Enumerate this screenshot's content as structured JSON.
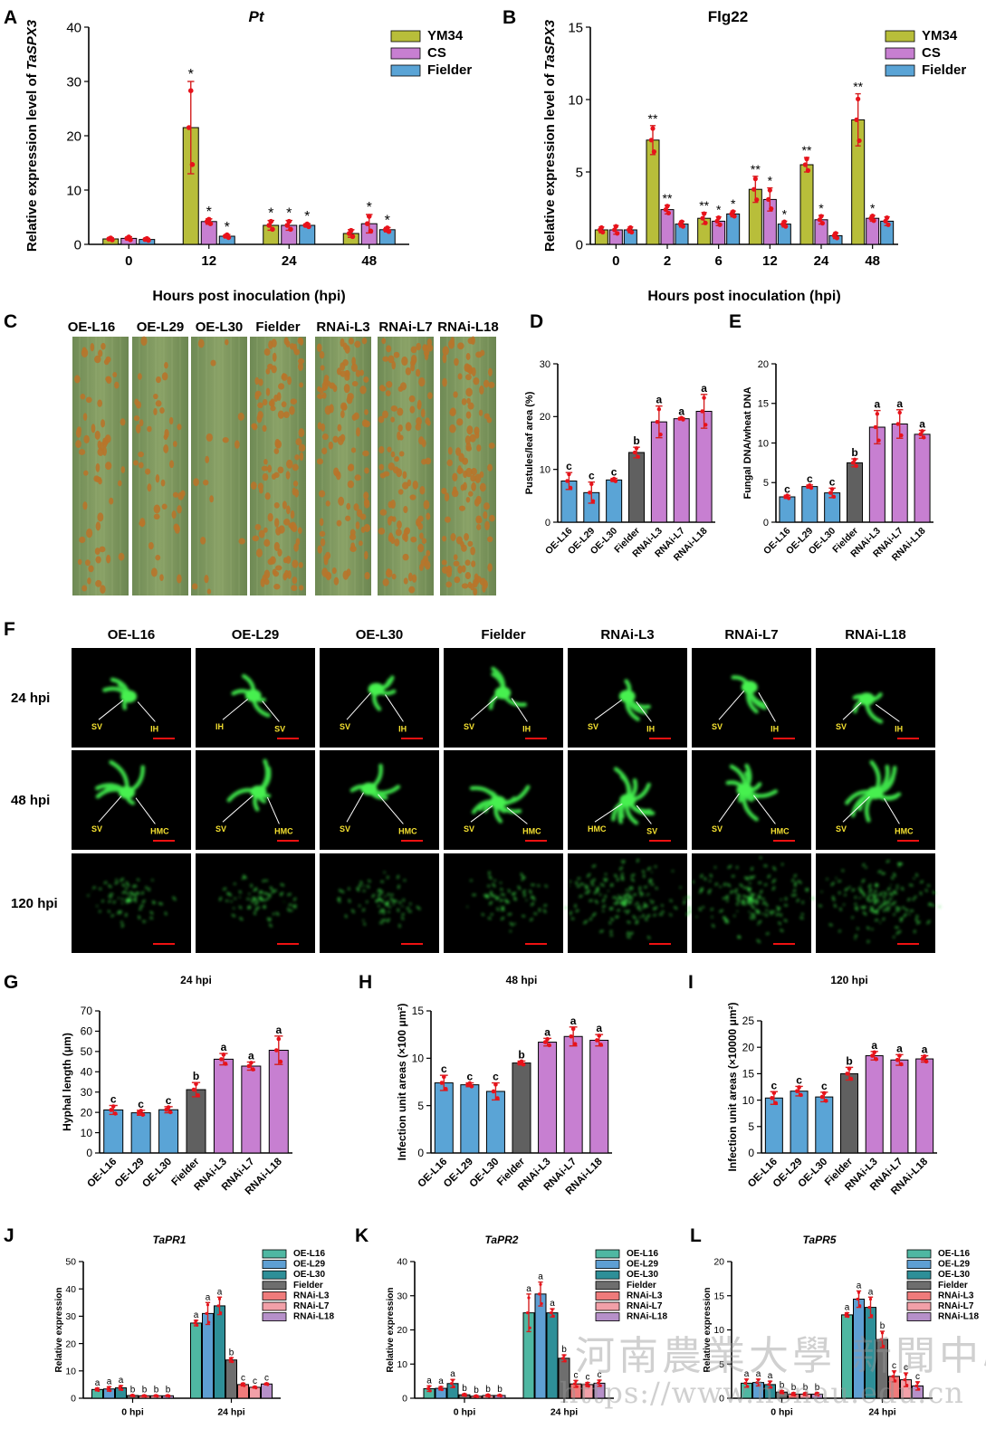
{
  "colors": {
    "ym34": "#b8be3a",
    "cs": "#c77fd1",
    "fielder": "#5aa4d6",
    "fielder_gray": "#606060",
    "oe": "#5aa4d6",
    "rnai": "#c77fd1",
    "error": "#d41f1f",
    "dot": "#e8121b",
    "j_oe16": "#4fb7a2",
    "j_oe29": "#5e9fd3",
    "j_oe30": "#2e8f98",
    "j_fielder": "#6e6e6e",
    "j_rnai3": "#ef7b7b",
    "j_rnai7": "#f2a0a8",
    "j_rnai18": "#b690c9"
  },
  "panel_letters": [
    "A",
    "B",
    "C",
    "D",
    "E",
    "F",
    "G",
    "H",
    "I",
    "J",
    "K",
    "L"
  ],
  "sig_lists": {
    "A": [
      "",
      "",
      "",
      "*",
      "*",
      "*",
      "*",
      "*",
      "*",
      "",
      "*",
      "*"
    ],
    "B": [
      "",
      "",
      "",
      "**",
      "**",
      "",
      "**",
      "*",
      "*",
      "**",
      "*",
      "*",
      "**",
      "*",
      "",
      "**",
      "*",
      ""
    ],
    "D": [
      "c",
      "c",
      "c",
      "b",
      "a",
      "a",
      "a"
    ],
    "E": [
      "c",
      "c",
      "c",
      "b",
      "a",
      "a",
      "a"
    ],
    "G": [
      "c",
      "c",
      "c",
      "b",
      "a",
      "a",
      "a"
    ],
    "H": [
      "c",
      "c",
      "c",
      "b",
      "a",
      "a",
      "a"
    ],
    "I": [
      "c",
      "c",
      "c",
      "b",
      "a",
      "a",
      "a"
    ],
    "J": [
      "a",
      "a",
      "a",
      "b",
      "b",
      "b",
      "b",
      "a",
      "a",
      "a",
      "b",
      "c",
      "c",
      "c"
    ],
    "K": [
      "a",
      "a",
      "a",
      "b",
      "b",
      "b",
      "b",
      "a",
      "a",
      "a",
      "b",
      "c",
      "c",
      "c"
    ],
    "L": [
      "a",
      "a",
      "a",
      "b",
      "b",
      "b",
      "b",
      "a",
      "a",
      "a",
      "b",
      "c",
      "c",
      "c"
    ]
  },
  "chart_data": [
    {
      "panel": "A",
      "type": "bar",
      "title": "Pt",
      "ylabel": "Relative expression level of TaSPX3",
      "xlabel": "Hours post inoculation (hpi)",
      "categories": [
        "0",
        "12",
        "24",
        "48"
      ],
      "ylim": [
        0,
        40
      ],
      "yticks": [
        0,
        10,
        20,
        30,
        40
      ],
      "series": [
        {
          "name": "YM34",
          "values": [
            1.0,
            21.5,
            3.5,
            2.0
          ],
          "errors": [
            0.2,
            8.5,
            0.9,
            0.7
          ]
        },
        {
          "name": "CS",
          "values": [
            1.1,
            4.2,
            3.5,
            3.8
          ],
          "errors": [
            0.3,
            0.5,
            0.9,
            1.7
          ]
        },
        {
          "name": "Fielder",
          "values": [
            0.9,
            1.5,
            3.5,
            2.7
          ],
          "errors": [
            0.2,
            0.3,
            0.3,
            0.4
          ]
        }
      ],
      "legend": "top-right"
    },
    {
      "panel": "B",
      "type": "bar",
      "title": "Flg22",
      "ylabel": "Relative expression level of TaSPX3",
      "xlabel": "Hours post inoculation (hpi)",
      "categories": [
        "0",
        "2",
        "6",
        "12",
        "24",
        "48"
      ],
      "ylim": [
        0,
        15
      ],
      "yticks": [
        0,
        5,
        10,
        15
      ],
      "series": [
        {
          "name": "YM34",
          "values": [
            1.0,
            7.2,
            1.8,
            3.8,
            5.5,
            8.6
          ],
          "errors": [
            0.2,
            1.0,
            0.4,
            0.9,
            0.5,
            1.8
          ]
        },
        {
          "name": "CS",
          "values": [
            1.0,
            2.4,
            1.6,
            3.1,
            1.7,
            1.8
          ],
          "errors": [
            0.3,
            0.3,
            0.3,
            0.8,
            0.3,
            0.2
          ]
        },
        {
          "name": "Fielder",
          "values": [
            1.0,
            1.4,
            2.1,
            1.4,
            0.6,
            1.6
          ],
          "errors": [
            0.2,
            0.2,
            0.2,
            0.2,
            0.2,
            0.3
          ]
        }
      ],
      "legend": "top-right"
    },
    {
      "panel": "D",
      "type": "bar",
      "ylabel": "Pustules/leaf area (%)",
      "categories": [
        "OE-L16",
        "OE-L29",
        "OE-L30",
        "Fielder",
        "RNAi-L3",
        "RNAi-L7",
        "RNAi-L18"
      ],
      "values": [
        7.8,
        5.6,
        8.0,
        13.2,
        19.0,
        19.6,
        21.0
      ],
      "errors": [
        1.6,
        2.0,
        0.3,
        1.0,
        3.0,
        0.2,
        3.2
      ],
      "ylim": [
        0,
        30
      ],
      "yticks": [
        0,
        10,
        20,
        30
      ]
    },
    {
      "panel": "E",
      "type": "bar",
      "ylabel": "Fungal DNA/wheat DNA",
      "categories": [
        "OE-L16",
        "OE-L29",
        "OE-L30",
        "Fielder",
        "RNAi-L3",
        "RNAi-L7",
        "RNAi-L18"
      ],
      "values": [
        3.2,
        4.5,
        3.7,
        7.5,
        12.0,
        12.4,
        11.1
      ],
      "errors": [
        0.2,
        0.2,
        0.6,
        0.5,
        2.1,
        1.8,
        0.5
      ],
      "ylim": [
        0,
        20
      ],
      "yticks": [
        0,
        5,
        10,
        15,
        20
      ]
    },
    {
      "panel": "G",
      "type": "bar",
      "title": "24 hpi",
      "ylabel": "Hyphal length (μm)",
      "categories": [
        "OE-L16",
        "OE-L29",
        "OE-L30",
        "Fielder",
        "RNAi-L3",
        "RNAi-L7",
        "RNAi-L18"
      ],
      "values": [
        21.2,
        19.8,
        21.3,
        31.2,
        46.2,
        42.8,
        50.6
      ],
      "errors": [
        2.2,
        1.2,
        1.5,
        3.5,
        2.8,
        2.0,
        7.0
      ],
      "ylim": [
        0,
        70
      ],
      "yticks": [
        0,
        10,
        20,
        30,
        40,
        50,
        60,
        70
      ]
    },
    {
      "panel": "H",
      "type": "bar",
      "title": "48 hpi",
      "ylabel": "Infection unit areas (×100 μm²)",
      "categories": [
        "OE-L16",
        "OE-L29",
        "OE-L30",
        "Fielder",
        "RNAi-L3",
        "RNAi-L7",
        "RNAi-L18"
      ],
      "values": [
        7.4,
        7.2,
        6.5,
        9.5,
        11.7,
        12.3,
        11.9
      ],
      "errors": [
        0.8,
        0.2,
        0.9,
        0.2,
        0.4,
        1.0,
        0.6
      ],
      "ylim": [
        0,
        15
      ],
      "yticks": [
        0,
        5,
        10,
        15
      ]
    },
    {
      "panel": "I",
      "type": "bar",
      "title": "120 hpi",
      "ylabel": "Infection unit areas (×10000 μm²)",
      "categories": [
        "OE-L16",
        "OE-L29",
        "OE-L30",
        "Fielder",
        "RNAi-L3",
        "RNAi-L7",
        "RNAi-L18"
      ],
      "values": [
        10.4,
        11.7,
        10.6,
        15.0,
        18.4,
        17.6,
        17.8
      ],
      "errors": [
        1.2,
        0.9,
        0.9,
        1.2,
        0.8,
        1.0,
        0.6
      ],
      "ylim": [
        0,
        25
      ],
      "yticks": [
        0,
        5,
        10,
        15,
        20,
        25
      ]
    },
    {
      "panel": "J",
      "type": "bar",
      "title": "TaPR1",
      "ylabel": "Relative expression",
      "categories": [
        "0 hpi",
        "24 hpi"
      ],
      "ylim": [
        0,
        50
      ],
      "yticks": [
        0,
        10,
        20,
        30,
        40,
        50
      ],
      "series": [
        {
          "name": "OE-L16",
          "values": [
            3.2,
            27.5
          ],
          "errors": [
            0.5,
            1.0
          ]
        },
        {
          "name": "OE-L29",
          "values": [
            3.4,
            31.0
          ],
          "errors": [
            0.8,
            4.0
          ]
        },
        {
          "name": "OE-L30",
          "values": [
            3.8,
            33.8
          ],
          "errors": [
            0.8,
            3.2
          ]
        },
        {
          "name": "Fielder",
          "values": [
            1.0,
            14.0
          ],
          "errors": [
            0.2,
            0.8
          ]
        },
        {
          "name": "RNAi-L3",
          "values": [
            0.9,
            5.0
          ],
          "errors": [
            0.2,
            0.5
          ]
        },
        {
          "name": "RNAi-L7",
          "values": [
            0.9,
            4.0
          ],
          "errors": [
            0.2,
            0.3
          ]
        },
        {
          "name": "RNAi-L18",
          "values": [
            0.9,
            5.2
          ],
          "errors": [
            0.2,
            0.3
          ]
        }
      ],
      "legend": "top-right"
    },
    {
      "panel": "K",
      "type": "bar",
      "title": "TaPR2",
      "ylabel": "Relative expression",
      "categories": [
        "0 hpi",
        "24 hpi"
      ],
      "ylim": [
        0,
        40
      ],
      "yticks": [
        0,
        10,
        20,
        30,
        40
      ],
      "series": [
        {
          "name": "OE-L16",
          "values": [
            2.8,
            25.0
          ],
          "errors": [
            0.8,
            5.5
          ]
        },
        {
          "name": "OE-L29",
          "values": [
            2.9,
            30.5
          ],
          "errors": [
            0.5,
            3.5
          ]
        },
        {
          "name": "OE-L30",
          "values": [
            4.3,
            25.0
          ],
          "errors": [
            1.2,
            1.2
          ]
        },
        {
          "name": "Fielder",
          "values": [
            1.0,
            11.7
          ],
          "errors": [
            0.3,
            1.0
          ]
        },
        {
          "name": "RNAi-L3",
          "values": [
            0.6,
            4.2
          ],
          "errors": [
            0.2,
            1.0
          ]
        },
        {
          "name": "RNAi-L7",
          "values": [
            0.8,
            4.0
          ],
          "errors": [
            0.3,
            0.6
          ]
        },
        {
          "name": "RNAi-L18",
          "values": [
            0.8,
            4.4
          ],
          "errors": [
            0.2,
            0.9
          ]
        }
      ],
      "legend": "top-right"
    },
    {
      "panel": "L",
      "type": "bar",
      "title": "TaPR5",
      "ylabel": "Relative expression",
      "categories": [
        "0 hpi",
        "24 hpi"
      ],
      "ylim": [
        0,
        20
      ],
      "yticks": [
        0,
        5,
        10,
        15,
        20
      ],
      "series": [
        {
          "name": "OE-L16",
          "values": [
            2.2,
            12.2
          ],
          "errors": [
            0.6,
            0.3
          ]
        },
        {
          "name": "OE-L29",
          "values": [
            2.3,
            14.5
          ],
          "errors": [
            0.5,
            1.2
          ]
        },
        {
          "name": "OE-L30",
          "values": [
            2.0,
            13.3
          ],
          "errors": [
            0.5,
            1.5
          ]
        },
        {
          "name": "Fielder",
          "values": [
            0.9,
            8.6
          ],
          "errors": [
            0.2,
            1.2
          ]
        },
        {
          "name": "RNAi-L3",
          "values": [
            0.6,
            3.2
          ],
          "errors": [
            0.2,
            0.8
          ]
        },
        {
          "name": "RNAi-L7",
          "values": [
            0.6,
            2.7
          ],
          "errors": [
            0.2,
            1.0
          ]
        },
        {
          "name": "RNAi-L18",
          "values": [
            0.6,
            1.8
          ],
          "errors": [
            0.2,
            0.6
          ]
        }
      ],
      "legend": "top-right"
    }
  ],
  "photo_panel_c": {
    "labels": [
      "OE-L16",
      "OE-L29",
      "OE-L30",
      "Fielder",
      "RNAi-L3",
      "RNAi-L7",
      "RNAi-L18"
    ],
    "pustule_density": [
      0.45,
      0.35,
      0.12,
      0.85,
      0.8,
      0.85,
      0.9
    ]
  },
  "micrograph_panel_f": {
    "columns": [
      "OE-L16",
      "OE-L29",
      "OE-L30",
      "Fielder",
      "RNAi-L3",
      "RNAi-L7",
      "RNAi-L18"
    ],
    "rows": [
      "24 hpi",
      "48 hpi",
      "120 hpi"
    ],
    "annotations_24": [
      [
        "SV",
        "IH"
      ],
      [
        "IH",
        "SV"
      ],
      [
        "SV",
        "IH"
      ],
      [
        "SV",
        "IH"
      ],
      [
        "SV",
        "IH"
      ],
      [
        "SV",
        "IH"
      ],
      [
        "SV",
        "IH"
      ]
    ],
    "annotations_48": [
      [
        "SV",
        "HMC"
      ],
      [
        "SV",
        "HMC"
      ],
      [
        "SV",
        "HMC"
      ],
      [
        "SV",
        "HMC"
      ],
      [
        "HMC",
        "SV"
      ],
      [
        "SV",
        "HMC"
      ],
      [
        "SV",
        "HMC"
      ]
    ]
  },
  "watermark": {
    "line1": "河南農業大學 新聞中心",
    "line2": "https://www.henau.edu.cn"
  }
}
